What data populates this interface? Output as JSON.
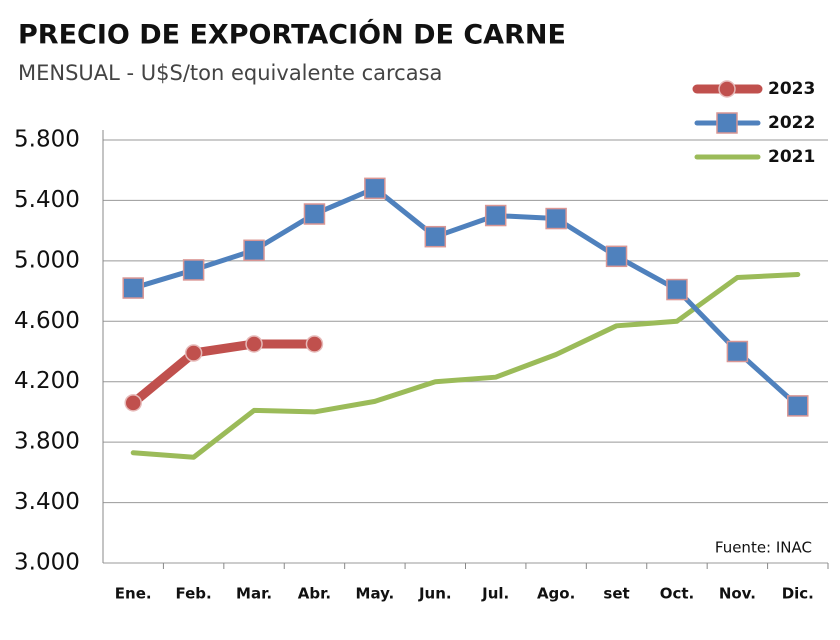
{
  "chart_data": {
    "type": "line",
    "title": "PRECIO DE EXPORTACIÓN DE CARNE",
    "subtitle": "MENSUAL - U$S/ton equivalente carcasa",
    "source": "Fuente: INAC",
    "categories": [
      "Ene.",
      "Feb.",
      "Mar.",
      "Abr.",
      "May.",
      "Jun.",
      "Jul.",
      "Ago.",
      "set",
      "Oct.",
      "Nov.",
      "Dic."
    ],
    "series": [
      {
        "name": "2023",
        "color": "#c0504d",
        "marker": "circle",
        "values": [
          4060,
          4390,
          4450,
          4450,
          null,
          null,
          null,
          null,
          null,
          null,
          null,
          null
        ]
      },
      {
        "name": "2022",
        "color": "#4f81bd",
        "marker": "square",
        "values": [
          4820,
          4940,
          5070,
          5310,
          5480,
          5160,
          5300,
          5280,
          5030,
          4810,
          4400,
          4040
        ]
      },
      {
        "name": "2021",
        "color": "#9bbb59",
        "marker": "none",
        "values": [
          3730,
          3700,
          4010,
          4000,
          4070,
          4200,
          4230,
          4380,
          4570,
          4600,
          4890,
          4910
        ]
      }
    ],
    "ylim": [
      3000,
      5800
    ],
    "yticks": [
      {
        "value": 3000,
        "label": "3.000"
      },
      {
        "value": 3400,
        "label": "3.400"
      },
      {
        "value": 3800,
        "label": "3.800"
      },
      {
        "value": 4200,
        "label": "4.200"
      },
      {
        "value": 4600,
        "label": "4.600"
      },
      {
        "value": 5000,
        "label": "5.000"
      },
      {
        "value": 5400,
        "label": "5.400"
      },
      {
        "value": 5800,
        "label": "5.800"
      }
    ],
    "grid": true,
    "legend": "top-right"
  }
}
